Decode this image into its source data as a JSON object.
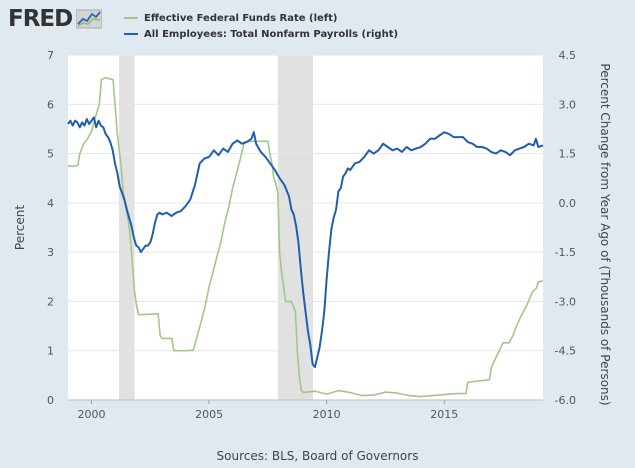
{
  "brand": {
    "logo_text": "FRED",
    "logo_graph_icon": "line-graph-icon"
  },
  "source_note": "Sources: BLS, Board of Governors",
  "chart_data": {
    "type": "line",
    "title": "",
    "xlabel": "",
    "ylabel_left": "Percent",
    "ylabel_right": "Percent Change from Year Ago of (Thousands of Persons)",
    "xlim": [
      1999.0,
      2019.2
    ],
    "ylim_left": [
      0,
      7
    ],
    "ylim_right": [
      -6.0,
      4.5
    ],
    "x_ticks": [
      2000,
      2005,
      2010,
      2015
    ],
    "x_tick_labels": [
      "2000",
      "2005",
      "2010",
      "2015"
    ],
    "y_left_ticks": [
      0,
      1,
      2,
      3,
      4,
      5,
      6,
      7
    ],
    "y_left_tick_labels": [
      "0",
      "1",
      "2",
      "3",
      "4",
      "5",
      "6",
      "7"
    ],
    "y_right_ticks": [
      -6.0,
      -4.5,
      -3.0,
      -1.5,
      0.0,
      1.5,
      3.0,
      4.5
    ],
    "y_right_tick_labels": [
      "-6.0",
      "-4.5",
      "-3.0",
      "-1.5",
      "0.0",
      "1.5",
      "3.0",
      "4.5"
    ],
    "grid": true,
    "legend_position": "top",
    "recessions": [
      [
        2001.17,
        2001.83
      ],
      [
        2007.92,
        2009.42
      ]
    ],
    "colors": {
      "left_series": "#a1c888",
      "right_series": "#1f5fae",
      "recession": "#e1e1e1",
      "background": "#e1e9f0"
    },
    "series": [
      {
        "name": "Effective Federal Funds Rate (left)",
        "axis": "left",
        "points": [
          [
            1999.0,
            4.75
          ],
          [
            1999.1,
            4.75
          ],
          [
            1999.25,
            4.74
          ],
          [
            1999.42,
            4.76
          ],
          [
            1999.5,
            5.0
          ],
          [
            1999.67,
            5.2
          ],
          [
            1999.83,
            5.3
          ],
          [
            2000.0,
            5.45
          ],
          [
            2000.17,
            5.75
          ],
          [
            2000.33,
            6.0
          ],
          [
            2000.42,
            6.5
          ],
          [
            2000.58,
            6.54
          ],
          [
            2000.75,
            6.52
          ],
          [
            2000.92,
            6.5
          ],
          [
            2001.0,
            6.0
          ],
          [
            2001.08,
            5.5
          ],
          [
            2001.17,
            5.1
          ],
          [
            2001.25,
            4.8
          ],
          [
            2001.33,
            4.3
          ],
          [
            2001.42,
            4.0
          ],
          [
            2001.5,
            3.8
          ],
          [
            2001.58,
            3.6
          ],
          [
            2001.67,
            3.2
          ],
          [
            2001.75,
            2.7
          ],
          [
            2001.83,
            2.2
          ],
          [
            2001.92,
            1.9
          ],
          [
            2002.0,
            1.73
          ],
          [
            2002.5,
            1.74
          ],
          [
            2002.83,
            1.75
          ],
          [
            2002.92,
            1.3
          ],
          [
            2003.0,
            1.25
          ],
          [
            2003.42,
            1.25
          ],
          [
            2003.5,
            1.0
          ],
          [
            2004.0,
            1.0
          ],
          [
            2004.33,
            1.01
          ],
          [
            2004.5,
            1.3
          ],
          [
            2004.67,
            1.6
          ],
          [
            2004.83,
            1.9
          ],
          [
            2005.0,
            2.3
          ],
          [
            2005.17,
            2.6
          ],
          [
            2005.33,
            2.9
          ],
          [
            2005.5,
            3.2
          ],
          [
            2005.67,
            3.6
          ],
          [
            2005.83,
            3.9
          ],
          [
            2006.0,
            4.3
          ],
          [
            2006.17,
            4.6
          ],
          [
            2006.33,
            4.9
          ],
          [
            2006.5,
            5.24
          ],
          [
            2007.0,
            5.25
          ],
          [
            2007.5,
            5.25
          ],
          [
            2007.58,
            5.0
          ],
          [
            2007.67,
            4.8
          ],
          [
            2007.75,
            4.5
          ],
          [
            2007.83,
            4.4
          ],
          [
            2007.92,
            4.2
          ],
          [
            2008.0,
            3.0
          ],
          [
            2008.08,
            2.6
          ],
          [
            2008.17,
            2.3
          ],
          [
            2008.25,
            2.0
          ],
          [
            2008.5,
            2.0
          ],
          [
            2008.67,
            1.8
          ],
          [
            2008.75,
            1.0
          ],
          [
            2008.83,
            0.5
          ],
          [
            2008.92,
            0.2
          ],
          [
            2009.0,
            0.15
          ],
          [
            2009.5,
            0.18
          ],
          [
            2010.0,
            0.12
          ],
          [
            2010.5,
            0.19
          ],
          [
            2011.0,
            0.15
          ],
          [
            2011.5,
            0.09
          ],
          [
            2012.0,
            0.1
          ],
          [
            2012.5,
            0.16
          ],
          [
            2013.0,
            0.14
          ],
          [
            2013.5,
            0.09
          ],
          [
            2014.0,
            0.07
          ],
          [
            2014.5,
            0.09
          ],
          [
            2015.0,
            0.11
          ],
          [
            2015.5,
            0.13
          ],
          [
            2015.92,
            0.13
          ],
          [
            2016.0,
            0.36
          ],
          [
            2016.5,
            0.39
          ],
          [
            2016.92,
            0.41
          ],
          [
            2017.0,
            0.66
          ],
          [
            2017.25,
            0.91
          ],
          [
            2017.5,
            1.16
          ],
          [
            2017.75,
            1.16
          ],
          [
            2017.92,
            1.3
          ],
          [
            2018.0,
            1.42
          ],
          [
            2018.25,
            1.69
          ],
          [
            2018.5,
            1.91
          ],
          [
            2018.75,
            2.19
          ],
          [
            2018.92,
            2.27
          ],
          [
            2019.0,
            2.4
          ],
          [
            2019.2,
            2.41
          ]
        ]
      },
      {
        "name": "All Employees: Total Nonfarm Payrolls (right)",
        "axis": "right",
        "points": [
          [
            1999.0,
            2.4
          ],
          [
            1999.1,
            2.5
          ],
          [
            1999.2,
            2.35
          ],
          [
            1999.3,
            2.5
          ],
          [
            1999.4,
            2.45
          ],
          [
            1999.5,
            2.3
          ],
          [
            1999.6,
            2.45
          ],
          [
            1999.7,
            2.35
          ],
          [
            1999.8,
            2.55
          ],
          [
            1999.9,
            2.4
          ],
          [
            2000.0,
            2.5
          ],
          [
            2000.1,
            2.6
          ],
          [
            2000.2,
            2.3
          ],
          [
            2000.3,
            2.5
          ],
          [
            2000.4,
            2.35
          ],
          [
            2000.5,
            2.3
          ],
          [
            2000.6,
            2.1
          ],
          [
            2000.7,
            2.0
          ],
          [
            2000.8,
            1.85
          ],
          [
            2000.9,
            1.6
          ],
          [
            2001.0,
            1.2
          ],
          [
            2001.1,
            0.9
          ],
          [
            2001.2,
            0.5
          ],
          [
            2001.3,
            0.3
          ],
          [
            2001.4,
            0.1
          ],
          [
            2001.5,
            -0.2
          ],
          [
            2001.6,
            -0.45
          ],
          [
            2001.7,
            -0.7
          ],
          [
            2001.8,
            -1.05
          ],
          [
            2001.9,
            -1.3
          ],
          [
            2002.0,
            -1.35
          ],
          [
            2002.1,
            -1.5
          ],
          [
            2002.2,
            -1.4
          ],
          [
            2002.3,
            -1.3
          ],
          [
            2002.4,
            -1.3
          ],
          [
            2002.5,
            -1.2
          ],
          [
            2002.6,
            -0.95
          ],
          [
            2002.7,
            -0.6
          ],
          [
            2002.8,
            -0.35
          ],
          [
            2002.9,
            -0.3
          ],
          [
            2003.0,
            -0.35
          ],
          [
            2003.2,
            -0.3
          ],
          [
            2003.4,
            -0.4
          ],
          [
            2003.6,
            -0.3
          ],
          [
            2003.8,
            -0.25
          ],
          [
            2004.0,
            -0.1
          ],
          [
            2004.2,
            0.1
          ],
          [
            2004.4,
            0.55
          ],
          [
            2004.6,
            1.2
          ],
          [
            2004.8,
            1.35
          ],
          [
            2005.0,
            1.4
          ],
          [
            2005.2,
            1.6
          ],
          [
            2005.4,
            1.45
          ],
          [
            2005.6,
            1.65
          ],
          [
            2005.8,
            1.55
          ],
          [
            2006.0,
            1.8
          ],
          [
            2006.2,
            1.9
          ],
          [
            2006.4,
            1.8
          ],
          [
            2006.6,
            1.85
          ],
          [
            2006.8,
            1.95
          ],
          [
            2006.9,
            2.15
          ],
          [
            2007.0,
            1.8
          ],
          [
            2007.2,
            1.55
          ],
          [
            2007.4,
            1.4
          ],
          [
            2007.6,
            1.2
          ],
          [
            2007.8,
            1.0
          ],
          [
            2008.0,
            0.75
          ],
          [
            2008.2,
            0.55
          ],
          [
            2008.4,
            0.2
          ],
          [
            2008.5,
            -0.2
          ],
          [
            2008.6,
            -0.35
          ],
          [
            2008.7,
            -0.7
          ],
          [
            2008.8,
            -1.2
          ],
          [
            2008.9,
            -2.0
          ],
          [
            2009.0,
            -2.7
          ],
          [
            2009.1,
            -3.3
          ],
          [
            2009.2,
            -3.9
          ],
          [
            2009.3,
            -4.3
          ],
          [
            2009.4,
            -4.9
          ],
          [
            2009.5,
            -5.0
          ],
          [
            2009.6,
            -4.7
          ],
          [
            2009.7,
            -4.4
          ],
          [
            2009.8,
            -3.9
          ],
          [
            2009.9,
            -3.3
          ],
          [
            2010.0,
            -2.3
          ],
          [
            2010.1,
            -1.5
          ],
          [
            2010.2,
            -0.8
          ],
          [
            2010.3,
            -0.45
          ],
          [
            2010.4,
            -0.2
          ],
          [
            2010.5,
            0.35
          ],
          [
            2010.6,
            0.45
          ],
          [
            2010.7,
            0.8
          ],
          [
            2010.8,
            0.9
          ],
          [
            2010.9,
            1.05
          ],
          [
            2011.0,
            1.0
          ],
          [
            2011.2,
            1.2
          ],
          [
            2011.4,
            1.25
          ],
          [
            2011.6,
            1.4
          ],
          [
            2011.8,
            1.6
          ],
          [
            2012.0,
            1.5
          ],
          [
            2012.2,
            1.6
          ],
          [
            2012.4,
            1.8
          ],
          [
            2012.6,
            1.7
          ],
          [
            2012.8,
            1.6
          ],
          [
            2013.0,
            1.65
          ],
          [
            2013.2,
            1.55
          ],
          [
            2013.4,
            1.7
          ],
          [
            2013.6,
            1.6
          ],
          [
            2013.8,
            1.65
          ],
          [
            2014.0,
            1.7
          ],
          [
            2014.2,
            1.8
          ],
          [
            2014.4,
            1.95
          ],
          [
            2014.6,
            1.95
          ],
          [
            2014.8,
            2.05
          ],
          [
            2015.0,
            2.15
          ],
          [
            2015.2,
            2.1
          ],
          [
            2015.4,
            2.0
          ],
          [
            2015.6,
            2.0
          ],
          [
            2015.8,
            2.0
          ],
          [
            2016.0,
            1.85
          ],
          [
            2016.2,
            1.8
          ],
          [
            2016.4,
            1.7
          ],
          [
            2016.6,
            1.7
          ],
          [
            2016.8,
            1.65
          ],
          [
            2017.0,
            1.55
          ],
          [
            2017.2,
            1.5
          ],
          [
            2017.4,
            1.6
          ],
          [
            2017.6,
            1.55
          ],
          [
            2017.8,
            1.45
          ],
          [
            2018.0,
            1.6
          ],
          [
            2018.2,
            1.65
          ],
          [
            2018.4,
            1.7
          ],
          [
            2018.6,
            1.8
          ],
          [
            2018.8,
            1.75
          ],
          [
            2018.9,
            1.95
          ],
          [
            2019.0,
            1.7
          ],
          [
            2019.2,
            1.75
          ]
        ]
      }
    ]
  }
}
